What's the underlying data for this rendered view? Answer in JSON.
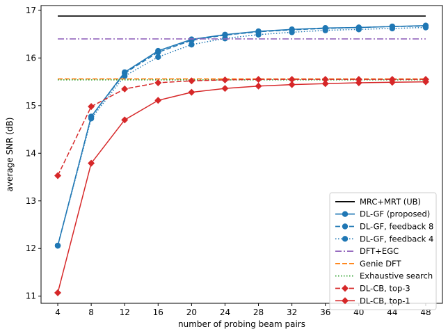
{
  "chart_data": {
    "type": "line",
    "xlabel": "number of probing beam pairs",
    "ylabel": "average SNR (dB)",
    "x": [
      4,
      8,
      12,
      16,
      20,
      24,
      28,
      32,
      36,
      40,
      44,
      48
    ],
    "xlim": [
      2,
      50
    ],
    "ylim": [
      10.85,
      17.1
    ],
    "xticks": [
      4,
      8,
      12,
      16,
      20,
      24,
      28,
      32,
      36,
      40,
      44,
      48
    ],
    "yticks": [
      11,
      12,
      13,
      14,
      15,
      16,
      17
    ],
    "grid": false,
    "legend_location": "lower right",
    "series": [
      {
        "name": "MRC+MRT (UB)",
        "color": "#000000",
        "style": "solid",
        "marker": "none",
        "values": [
          16.88,
          16.88,
          16.88,
          16.88,
          16.88,
          16.88,
          16.88,
          16.88,
          16.88,
          16.88,
          16.88,
          16.88
        ]
      },
      {
        "name": "DL-GF (proposed)",
        "color": "#1f77b4",
        "style": "solid",
        "marker": "circle",
        "values": [
          12.06,
          14.77,
          15.7,
          16.15,
          16.39,
          16.49,
          16.56,
          16.6,
          16.63,
          16.64,
          16.66,
          16.68
        ]
      },
      {
        "name": "DL-GF, feedback 8",
        "color": "#1f77b4",
        "style": "dashed",
        "marker": "circle",
        "values": [
          12.06,
          14.77,
          15.68,
          16.12,
          16.37,
          16.48,
          16.55,
          16.59,
          16.62,
          16.64,
          16.66,
          16.67
        ]
      },
      {
        "name": "DL-GF, feedback 4",
        "color": "#1f77b4",
        "style": "dotted",
        "marker": "circle",
        "values": [
          12.06,
          14.73,
          15.62,
          16.02,
          16.28,
          16.41,
          16.49,
          16.54,
          16.58,
          16.6,
          16.62,
          16.64
        ]
      },
      {
        "name": "DFT+EGC",
        "color": "#9467bd",
        "style": "dashdot",
        "marker": "none",
        "values": [
          16.4,
          16.4,
          16.4,
          16.4,
          16.4,
          16.4,
          16.4,
          16.4,
          16.4,
          16.4,
          16.4,
          16.4
        ]
      },
      {
        "name": "Genie DFT",
        "color": "#ff7f0e",
        "style": "dashed",
        "marker": "none",
        "values": [
          15.56,
          15.56,
          15.56,
          15.56,
          15.56,
          15.56,
          15.56,
          15.56,
          15.56,
          15.56,
          15.56,
          15.56
        ]
      },
      {
        "name": "Exhaustive search",
        "color": "#2ca02c",
        "style": "dotted",
        "marker": "none",
        "values": [
          15.54,
          15.54,
          15.54,
          15.54,
          15.54,
          15.54,
          15.54,
          15.54,
          15.54,
          15.54,
          15.54,
          15.54
        ]
      },
      {
        "name": "DL-CB, top-3",
        "color": "#d62728",
        "style": "dashed",
        "marker": "diamond",
        "values": [
          13.53,
          14.98,
          15.35,
          15.48,
          15.52,
          15.54,
          15.55,
          15.55,
          15.55,
          15.55,
          15.55,
          15.55
        ]
      },
      {
        "name": "DL-CB, top-1",
        "color": "#d62728",
        "style": "solid",
        "marker": "diamond",
        "values": [
          11.07,
          13.79,
          14.7,
          15.11,
          15.28,
          15.36,
          15.41,
          15.44,
          15.46,
          15.48,
          15.49,
          15.5
        ]
      }
    ]
  }
}
